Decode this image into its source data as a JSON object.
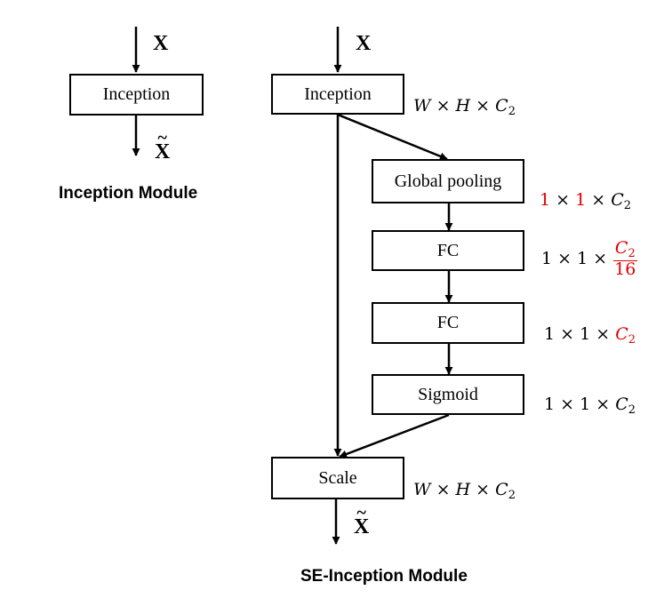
{
  "left_module": {
    "input_label": "X",
    "block_label": "Inception",
    "output_label": "X",
    "output_tilde": "~",
    "caption": "Inception Module"
  },
  "right_module": {
    "input_label": "X",
    "blocks": {
      "inception": "Inception",
      "global_pooling": "Global pooling",
      "fc1": "FC",
      "fc2": "FC",
      "sigmoid": "Sigmoid",
      "scale": "Scale"
    },
    "output_label": "X",
    "output_tilde": "~",
    "caption": "SE-Inception Module"
  },
  "dimensions": {
    "inception": {
      "w": "W",
      "times1": "×",
      "h": "H",
      "times2": "×",
      "c": "C",
      "sub": "2"
    },
    "global_pooling": {
      "a": "1",
      "times1": "×",
      "b": "1",
      "times2": "×",
      "c": "C",
      "sub": "2"
    },
    "fc1": {
      "a": "1",
      "times1": "×",
      "b": "1",
      "times2": "×",
      "num_c": "C",
      "num_sub": "2",
      "den": "16"
    },
    "fc2": {
      "a": "1",
      "times1": "×",
      "b": "1",
      "times2": "×",
      "c": "C",
      "sub": "2"
    },
    "sigmoid": {
      "a": "1",
      "times1": "×",
      "b": "1",
      "times2": "×",
      "c": "C",
      "sub": "2"
    },
    "scale": {
      "w": "W",
      "times1": "×",
      "h": "H",
      "times2": "×",
      "c": "C",
      "sub": "2"
    }
  },
  "colors": {
    "stroke": "#000000",
    "highlight": "#e00000"
  }
}
